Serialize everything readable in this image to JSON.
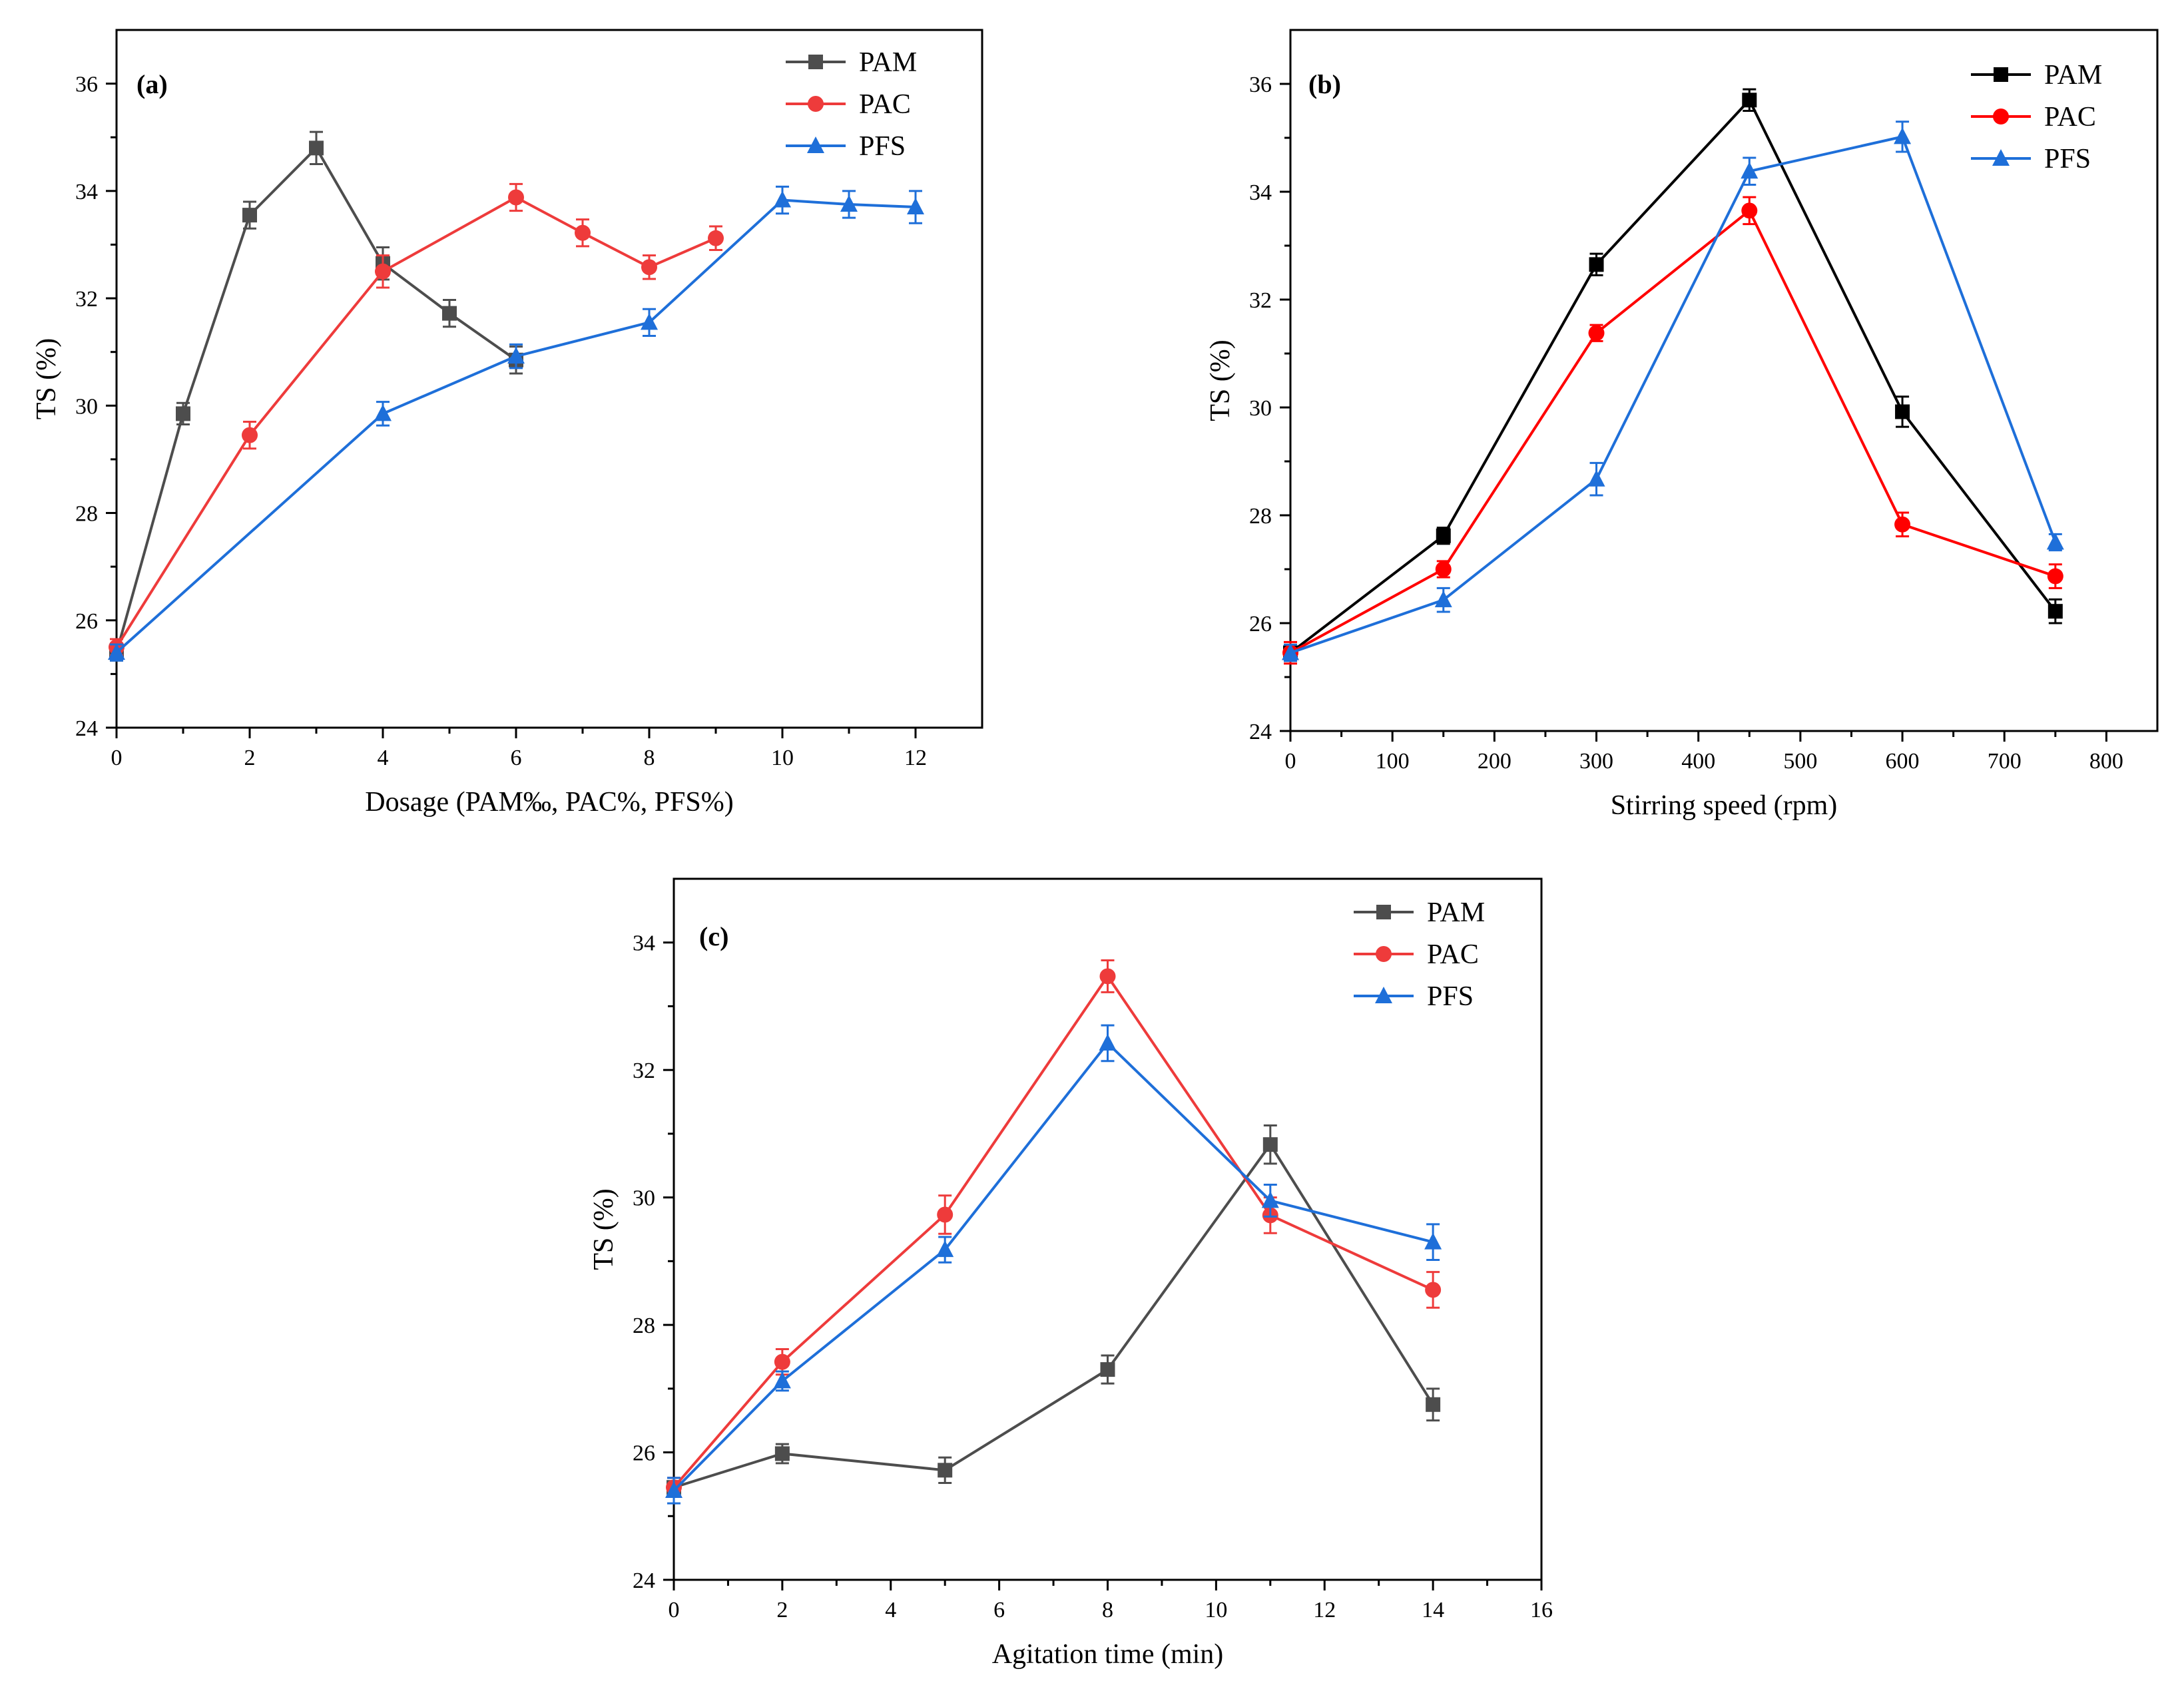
{
  "chart_data": [
    {
      "type": "line",
      "panel_label": "(a)",
      "xlabel": "Dosage (PAM‰, PAC%, PFS%)",
      "ylabel": "TS (%)",
      "xlim": [
        0,
        13
      ],
      "ylim": [
        24,
        37
      ],
      "xticks": [
        0,
        2,
        4,
        6,
        8,
        10,
        12
      ],
      "yticks": [
        24,
        26,
        28,
        30,
        32,
        34,
        36
      ],
      "legend_position": "top-right",
      "series": [
        {
          "name": "PAM",
          "color": "#4d4d4d",
          "marker": "square",
          "x": [
            0,
            1,
            2,
            3,
            4,
            5,
            6
          ],
          "y": [
            25.4,
            29.85,
            33.55,
            34.8,
            32.65,
            31.72,
            30.85
          ],
          "err": [
            0.15,
            0.2,
            0.25,
            0.3,
            0.3,
            0.25,
            0.25
          ]
        },
        {
          "name": "PAC",
          "color": "#ee3b3b",
          "marker": "circle",
          "x": [
            0,
            2,
            4,
            6,
            7,
            8,
            9
          ],
          "y": [
            25.5,
            29.45,
            32.5,
            33.88,
            33.22,
            32.58,
            33.12
          ],
          "err": [
            0.15,
            0.25,
            0.3,
            0.25,
            0.25,
            0.22,
            0.22
          ]
        },
        {
          "name": "PFS",
          "color": "#1e6fd9",
          "marker": "triangle",
          "x": [
            0,
            4,
            6,
            8,
            10,
            11,
            12
          ],
          "y": [
            25.4,
            29.85,
            30.92,
            31.55,
            33.83,
            33.75,
            33.7
          ],
          "err": [
            0.15,
            0.22,
            0.22,
            0.25,
            0.25,
            0.25,
            0.3
          ]
        }
      ]
    },
    {
      "type": "line",
      "panel_label": "(b)",
      "xlabel": "Stirring speed (rpm)",
      "ylabel": "TS (%)",
      "xlim": [
        0,
        850
      ],
      "ylim": [
        24,
        37
      ],
      "xticks": [
        0,
        100,
        200,
        300,
        400,
        500,
        600,
        700,
        800
      ],
      "yticks": [
        24,
        26,
        28,
        30,
        32,
        34,
        36
      ],
      "legend_position": "top-right",
      "series": [
        {
          "name": "PAM",
          "color": "#000000",
          "marker": "square",
          "x": [
            0,
            150,
            300,
            450,
            600,
            750
          ],
          "y": [
            25.45,
            27.62,
            32.65,
            35.7,
            29.92,
            26.22
          ],
          "err": [
            0.15,
            0.15,
            0.2,
            0.2,
            0.28,
            0.22
          ]
        },
        {
          "name": "PAC",
          "color": "#ff0000",
          "marker": "circle",
          "x": [
            0,
            150,
            300,
            450,
            600,
            750
          ],
          "y": [
            25.45,
            27.0,
            31.38,
            33.65,
            27.83,
            26.87
          ],
          "err": [
            0.2,
            0.15,
            0.15,
            0.25,
            0.22,
            0.22
          ]
        },
        {
          "name": "PFS",
          "color": "#1e6fd9",
          "marker": "triangle",
          "x": [
            0,
            150,
            300,
            450,
            600,
            750
          ],
          "y": [
            25.45,
            26.43,
            28.67,
            34.38,
            35.02,
            27.5
          ],
          "err": [
            0.15,
            0.22,
            0.3,
            0.25,
            0.28,
            0.15
          ]
        }
      ]
    },
    {
      "type": "line",
      "panel_label": "(c)",
      "xlabel": "Agitation time (min)",
      "ylabel": "TS (%)",
      "xlim": [
        0,
        16
      ],
      "ylim": [
        24,
        35
      ],
      "xticks": [
        0,
        2,
        4,
        6,
        8,
        10,
        12,
        14,
        16
      ],
      "yticks": [
        24,
        26,
        28,
        30,
        32,
        34
      ],
      "legend_position": "top-right",
      "series": [
        {
          "name": "PAM",
          "color": "#4d4d4d",
          "marker": "square",
          "x": [
            0,
            2,
            5,
            8,
            11,
            14
          ],
          "y": [
            25.45,
            25.98,
            25.72,
            27.3,
            30.83,
            26.75
          ],
          "err": [
            0.15,
            0.15,
            0.2,
            0.22,
            0.3,
            0.25
          ]
        },
        {
          "name": "PAC",
          "color": "#ee3b3b",
          "marker": "circle",
          "x": [
            0,
            2,
            5,
            8,
            11,
            14
          ],
          "y": [
            25.45,
            27.42,
            29.73,
            33.47,
            29.72,
            28.55
          ],
          "err": [
            0.15,
            0.2,
            0.3,
            0.25,
            0.28,
            0.28
          ]
        },
        {
          "name": "PFS",
          "color": "#1e6fd9",
          "marker": "triangle",
          "x": [
            0,
            2,
            5,
            8,
            11,
            14
          ],
          "y": [
            25.4,
            27.12,
            29.18,
            32.42,
            29.95,
            29.3
          ],
          "err": [
            0.2,
            0.15,
            0.2,
            0.28,
            0.25,
            0.28
          ]
        }
      ]
    }
  ]
}
